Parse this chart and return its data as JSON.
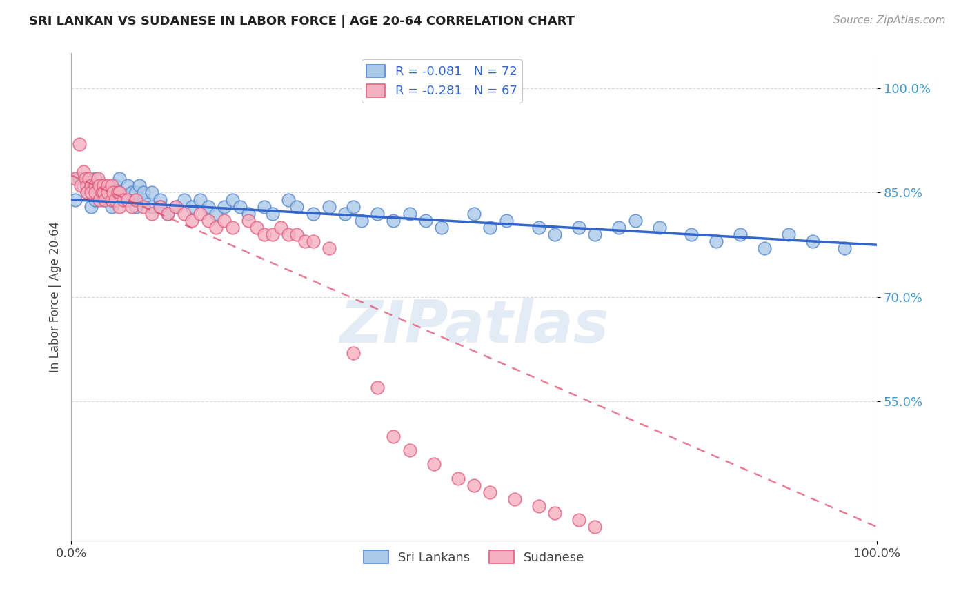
{
  "title": "SRI LANKAN VS SUDANESE IN LABOR FORCE | AGE 20-64 CORRELATION CHART",
  "source": "Source: ZipAtlas.com",
  "ylabel": "In Labor Force | Age 20-64",
  "ytick_vals": [
    1.0,
    0.85,
    0.7,
    0.55
  ],
  "ytick_labels": [
    "100.0%",
    "85.0%",
    "70.0%",
    "55.0%"
  ],
  "xtick_vals": [
    0.0,
    1.0
  ],
  "xtick_labels": [
    "0.0%",
    "100.0%"
  ],
  "background_color": "#ffffff",
  "grid_color": "#cccccc",
  "sri_color": "#aac8e8",
  "sri_edge": "#5588cc",
  "sud_color": "#f5b0c0",
  "sud_edge": "#e06080",
  "sri_line_color": "#3366cc",
  "sud_line_color": "#dd4466",
  "legend_sri_R": "-0.081",
  "legend_sri_N": "72",
  "legend_sud_R": "-0.281",
  "legend_sud_N": "67",
  "watermark": "ZIPatlas",
  "xlim": [
    0.0,
    1.0
  ],
  "ylim": [
    0.35,
    1.05
  ],
  "sri_x": [
    0.005,
    0.01,
    0.015,
    0.02,
    0.025,
    0.025,
    0.03,
    0.03,
    0.035,
    0.04,
    0.04,
    0.045,
    0.05,
    0.05,
    0.055,
    0.06,
    0.06,
    0.065,
    0.07,
    0.07,
    0.075,
    0.08,
    0.08,
    0.085,
    0.09,
    0.09,
    0.1,
    0.1,
    0.11,
    0.11,
    0.12,
    0.13,
    0.14,
    0.15,
    0.16,
    0.17,
    0.18,
    0.19,
    0.2,
    0.21,
    0.22,
    0.24,
    0.25,
    0.27,
    0.28,
    0.3,
    0.32,
    0.34,
    0.35,
    0.36,
    0.38,
    0.4,
    0.42,
    0.44,
    0.46,
    0.5,
    0.52,
    0.54,
    0.58,
    0.6,
    0.63,
    0.65,
    0.68,
    0.7,
    0.73,
    0.77,
    0.8,
    0.83,
    0.86,
    0.89,
    0.92,
    0.96
  ],
  "sri_y": [
    0.84,
    0.87,
    0.86,
    0.85,
    0.83,
    0.86,
    0.84,
    0.87,
    0.85,
    0.84,
    0.86,
    0.85,
    0.83,
    0.84,
    0.86,
    0.85,
    0.87,
    0.84,
    0.84,
    0.86,
    0.85,
    0.83,
    0.85,
    0.86,
    0.84,
    0.85,
    0.83,
    0.85,
    0.84,
    0.83,
    0.82,
    0.83,
    0.84,
    0.83,
    0.84,
    0.83,
    0.82,
    0.83,
    0.84,
    0.83,
    0.82,
    0.83,
    0.82,
    0.84,
    0.83,
    0.82,
    0.83,
    0.82,
    0.83,
    0.81,
    0.82,
    0.81,
    0.82,
    0.81,
    0.8,
    0.82,
    0.8,
    0.81,
    0.8,
    0.79,
    0.8,
    0.79,
    0.8,
    0.81,
    0.8,
    0.79,
    0.78,
    0.79,
    0.77,
    0.79,
    0.78,
    0.77
  ],
  "sud_x": [
    0.005,
    0.01,
    0.012,
    0.015,
    0.018,
    0.02,
    0.02,
    0.022,
    0.025,
    0.025,
    0.03,
    0.03,
    0.033,
    0.035,
    0.035,
    0.038,
    0.04,
    0.04,
    0.042,
    0.045,
    0.045,
    0.05,
    0.05,
    0.052,
    0.055,
    0.058,
    0.06,
    0.06,
    0.065,
    0.07,
    0.075,
    0.08,
    0.09,
    0.1,
    0.11,
    0.12,
    0.13,
    0.14,
    0.15,
    0.16,
    0.17,
    0.18,
    0.19,
    0.2,
    0.22,
    0.23,
    0.24,
    0.25,
    0.26,
    0.27,
    0.28,
    0.29,
    0.3,
    0.32,
    0.35,
    0.38,
    0.4,
    0.42,
    0.45,
    0.48,
    0.5,
    0.52,
    0.55,
    0.58,
    0.6,
    0.63,
    0.65
  ],
  "sud_y": [
    0.87,
    0.92,
    0.86,
    0.88,
    0.87,
    0.86,
    0.85,
    0.87,
    0.86,
    0.85,
    0.86,
    0.85,
    0.87,
    0.86,
    0.84,
    0.85,
    0.86,
    0.85,
    0.84,
    0.86,
    0.85,
    0.86,
    0.84,
    0.85,
    0.84,
    0.85,
    0.85,
    0.83,
    0.84,
    0.84,
    0.83,
    0.84,
    0.83,
    0.82,
    0.83,
    0.82,
    0.83,
    0.82,
    0.81,
    0.82,
    0.81,
    0.8,
    0.81,
    0.8,
    0.81,
    0.8,
    0.79,
    0.79,
    0.8,
    0.79,
    0.79,
    0.78,
    0.78,
    0.77,
    0.62,
    0.57,
    0.5,
    0.48,
    0.46,
    0.44,
    0.43,
    0.42,
    0.41,
    0.4,
    0.39,
    0.38,
    0.37
  ],
  "sri_line_x0": 0.0,
  "sri_line_x1": 1.0,
  "sri_line_y0": 0.84,
  "sri_line_y1": 0.775,
  "sud_line_x0": 0.0,
  "sud_line_x1": 1.0,
  "sud_line_y0": 0.875,
  "sud_line_y1": 0.37
}
